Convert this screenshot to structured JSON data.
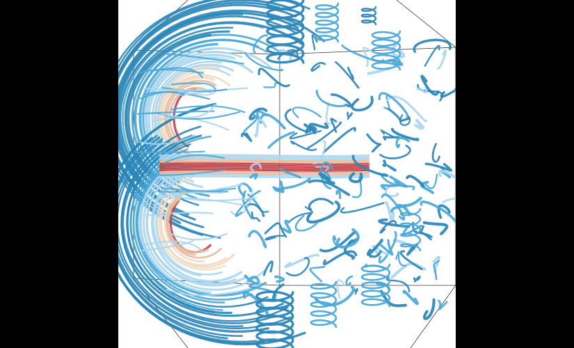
{
  "scene": {
    "subject": "",
    "colors": {
      "background": "#ffffff",
      "letterbox": "#000000",
      "frame_line": "#333333",
      "stream_blue_dark": "#2a86b8",
      "stream_blue_mid": "#4aa8d8",
      "stream_blue_light": "#a9d6ee",
      "stream_cream": "#f0dcc4",
      "stream_peach": "#e8b99a",
      "stream_red": "#c2414a"
    }
  }
}
